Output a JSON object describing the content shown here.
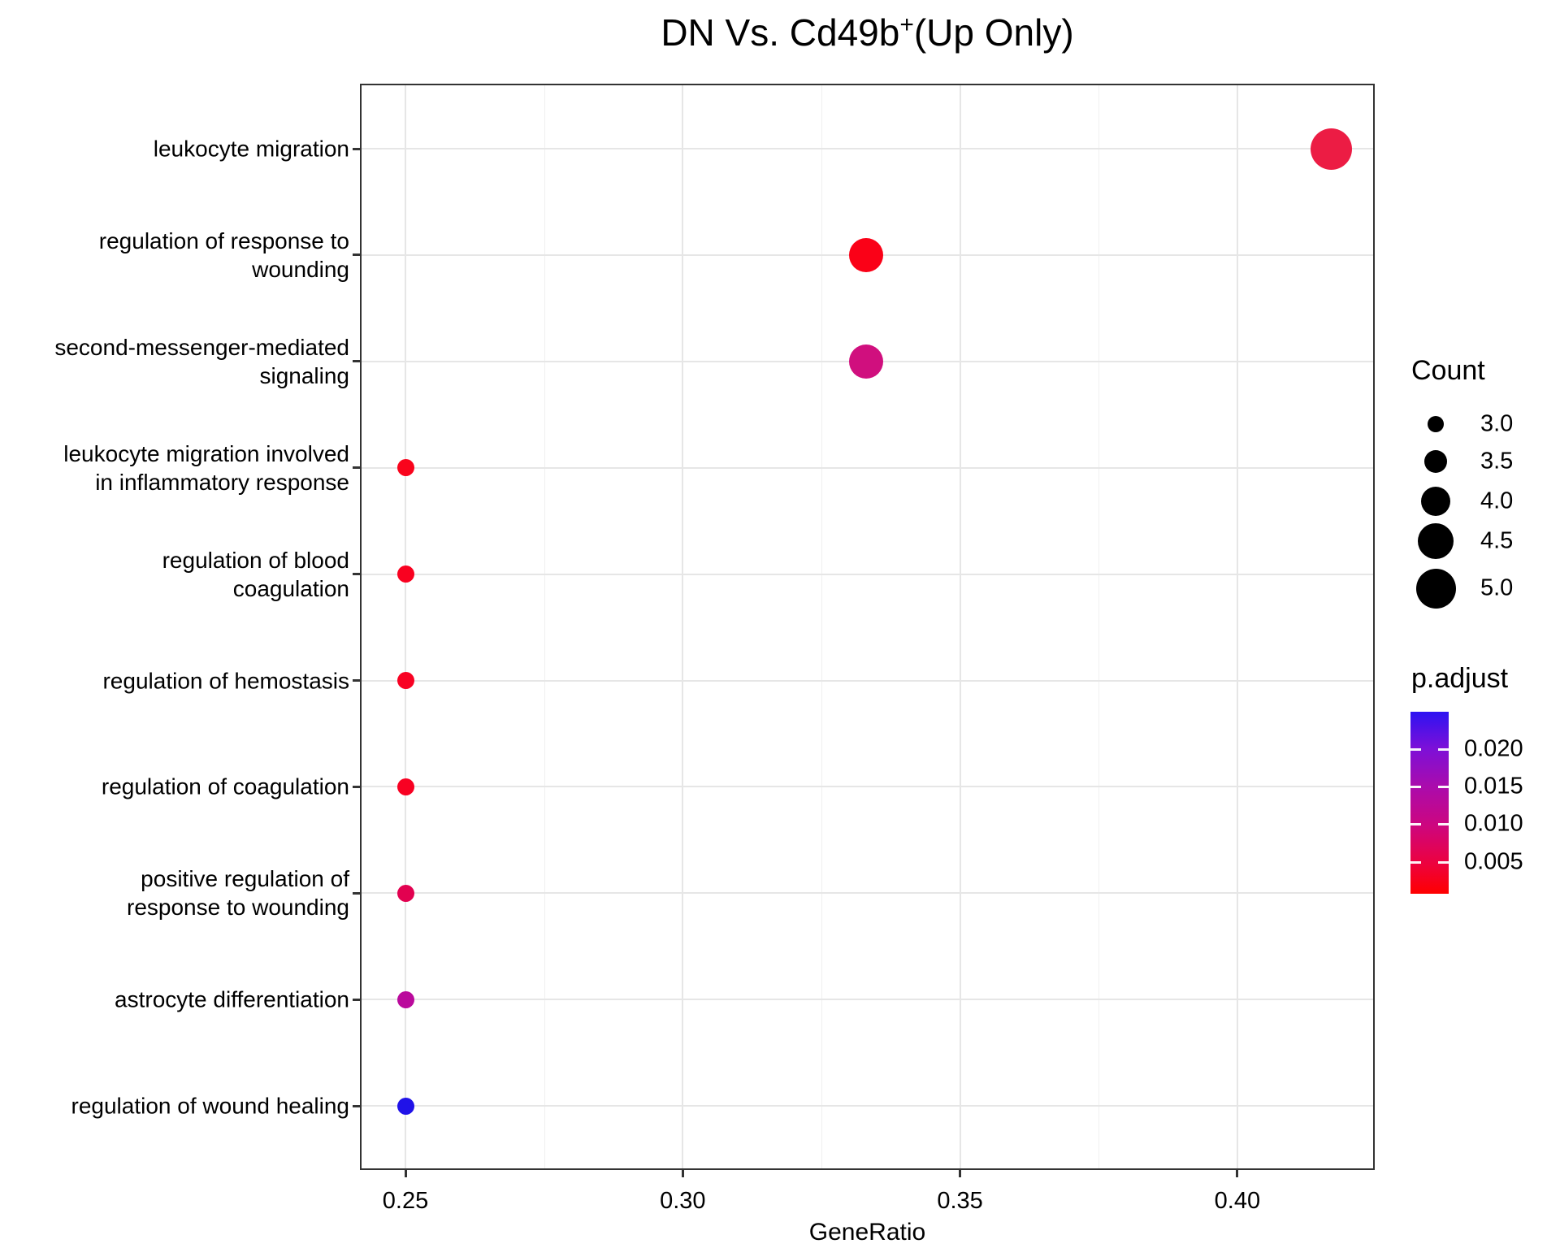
{
  "title": {
    "prefix": "DN Vs. Cd49b",
    "sup": "+",
    "suffix": "(Up Only)"
  },
  "chart_data": {
    "type": "scatter",
    "title": "DN Vs. Cd49b+(Up Only)",
    "xlabel": "GeneRatio",
    "ylabel": "",
    "grid": true,
    "legend_position": "right",
    "xlim": [
      0.242,
      0.425
    ],
    "x_ticks": [
      0.25,
      0.3,
      0.35,
      0.4
    ],
    "x_tick_labels": [
      "0.25",
      "0.30",
      "0.35",
      "0.40"
    ],
    "x_minor_gridlines": [
      0.275,
      0.325,
      0.375
    ],
    "categories": [
      "leukocyte migration",
      "regulation of response to\nwounding",
      "second-messenger-mediated\nsignaling",
      "leukocyte migration involved\nin inflammatory response",
      "regulation of blood\ncoagulation",
      "regulation of hemostasis",
      "regulation of coagulation",
      "positive regulation of\nresponse to wounding",
      "astrocyte differentiation",
      "regulation of wound healing"
    ],
    "points": [
      {
        "category": "leukocyte migration",
        "gene_ratio": 0.417,
        "count": 5,
        "p_adjust": 0.004,
        "color": "#EC1C44"
      },
      {
        "category": "regulation of response to wounding",
        "gene_ratio": 0.333,
        "count": 4,
        "p_adjust": 0.001,
        "color": "#FA0117"
      },
      {
        "category": "second-messenger-mediated signaling",
        "gene_ratio": 0.333,
        "count": 4,
        "p_adjust": 0.009,
        "color": "#D00F7E"
      },
      {
        "category": "leukocyte migration involved in inflammatory response",
        "gene_ratio": 0.25,
        "count": 3,
        "p_adjust": 0.002,
        "color": "#F9041C"
      },
      {
        "category": "regulation of blood coagulation",
        "gene_ratio": 0.25,
        "count": 3,
        "p_adjust": 0.002,
        "color": "#F90120"
      },
      {
        "category": "regulation of hemostasis",
        "gene_ratio": 0.25,
        "count": 3,
        "p_adjust": 0.002,
        "color": "#F80223"
      },
      {
        "category": "regulation of coagulation",
        "gene_ratio": 0.25,
        "count": 3,
        "p_adjust": 0.002,
        "color": "#F80122"
      },
      {
        "category": "positive regulation of response to wounding",
        "gene_ratio": 0.25,
        "count": 3,
        "p_adjust": 0.006,
        "color": "#E20150"
      },
      {
        "category": "astrocyte differentiation",
        "gene_ratio": 0.25,
        "count": 3,
        "p_adjust": 0.013,
        "color": "#BA0A9C"
      },
      {
        "category": "regulation of wound healing",
        "gene_ratio": 0.25,
        "count": 3,
        "p_adjust": 0.022,
        "color": "#2012E8"
      }
    ],
    "legend_size": {
      "title": "Count",
      "labels": [
        "3.0",
        "3.5",
        "4.0",
        "4.5",
        "5.0"
      ],
      "values": [
        3.0,
        3.5,
        4.0,
        4.5,
        5.0
      ]
    },
    "legend_color": {
      "title": "p.adjust",
      "ticks": [
        0.02,
        0.015,
        0.01,
        0.005
      ],
      "tick_labels": [
        "0.020",
        "0.015",
        "0.010",
        "0.005"
      ],
      "range": [
        0.001,
        0.025
      ],
      "gradient_colors": [
        "#2D12F2",
        "#7C10D8",
        "#AC0BAA",
        "#CC0680",
        "#EC0240",
        "#FF0000"
      ],
      "gradient_positions": [
        0,
        20,
        42,
        62,
        83,
        100
      ]
    }
  }
}
